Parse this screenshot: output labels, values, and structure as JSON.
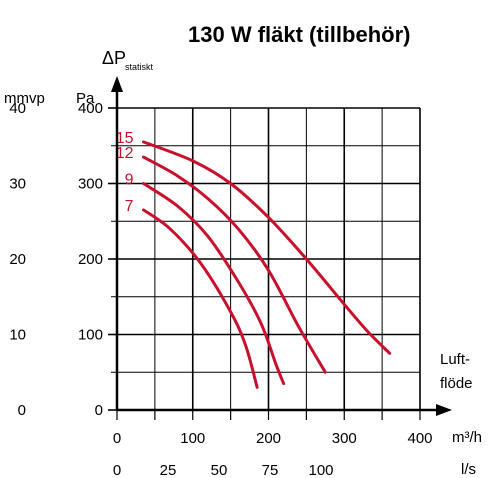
{
  "chart_data": {
    "type": "line",
    "title": "130 W fläkt (tillbehör)",
    "ylabel_main": "ΔP",
    "ylabel_sub": "statiskt",
    "y_units": [
      "mmvp",
      "Pa"
    ],
    "x_units": [
      "m³/h",
      "l/s"
    ],
    "xlabel_lines": [
      "Luft-",
      "flöde"
    ],
    "x_ticks_m3h": [
      "0",
      "100",
      "200",
      "300",
      "400"
    ],
    "x_ticks_ls": [
      "0",
      "25",
      "50",
      "75",
      "100"
    ],
    "y_ticks_pa": [
      "0",
      "100",
      "200",
      "300",
      "400"
    ],
    "y_ticks_mmvp": [
      "0",
      "10",
      "20",
      "30",
      "40"
    ],
    "xlim": [
      0,
      400
    ],
    "ylim": [
      0,
      400
    ],
    "grid": true,
    "curve_color": "#c8102e",
    "series": [
      {
        "name": "15",
        "x": [
          35,
          100,
          150,
          200,
          250,
          300,
          330,
          360
        ],
        "y": [
          355,
          330,
          300,
          255,
          200,
          140,
          105,
          75
        ]
      },
      {
        "name": "12",
        "x": [
          35,
          80,
          120,
          160,
          200,
          240,
          275
        ],
        "y": [
          335,
          310,
          280,
          240,
          185,
          110,
          50
        ]
      },
      {
        "name": "9",
        "x": [
          35,
          80,
          120,
          160,
          190,
          210,
          220
        ],
        "y": [
          300,
          270,
          230,
          170,
          115,
          60,
          35
        ]
      },
      {
        "name": "7",
        "x": [
          35,
          70,
          110,
          150,
          170,
          185
        ],
        "y": [
          265,
          240,
          195,
          130,
          85,
          30
        ]
      }
    ]
  }
}
